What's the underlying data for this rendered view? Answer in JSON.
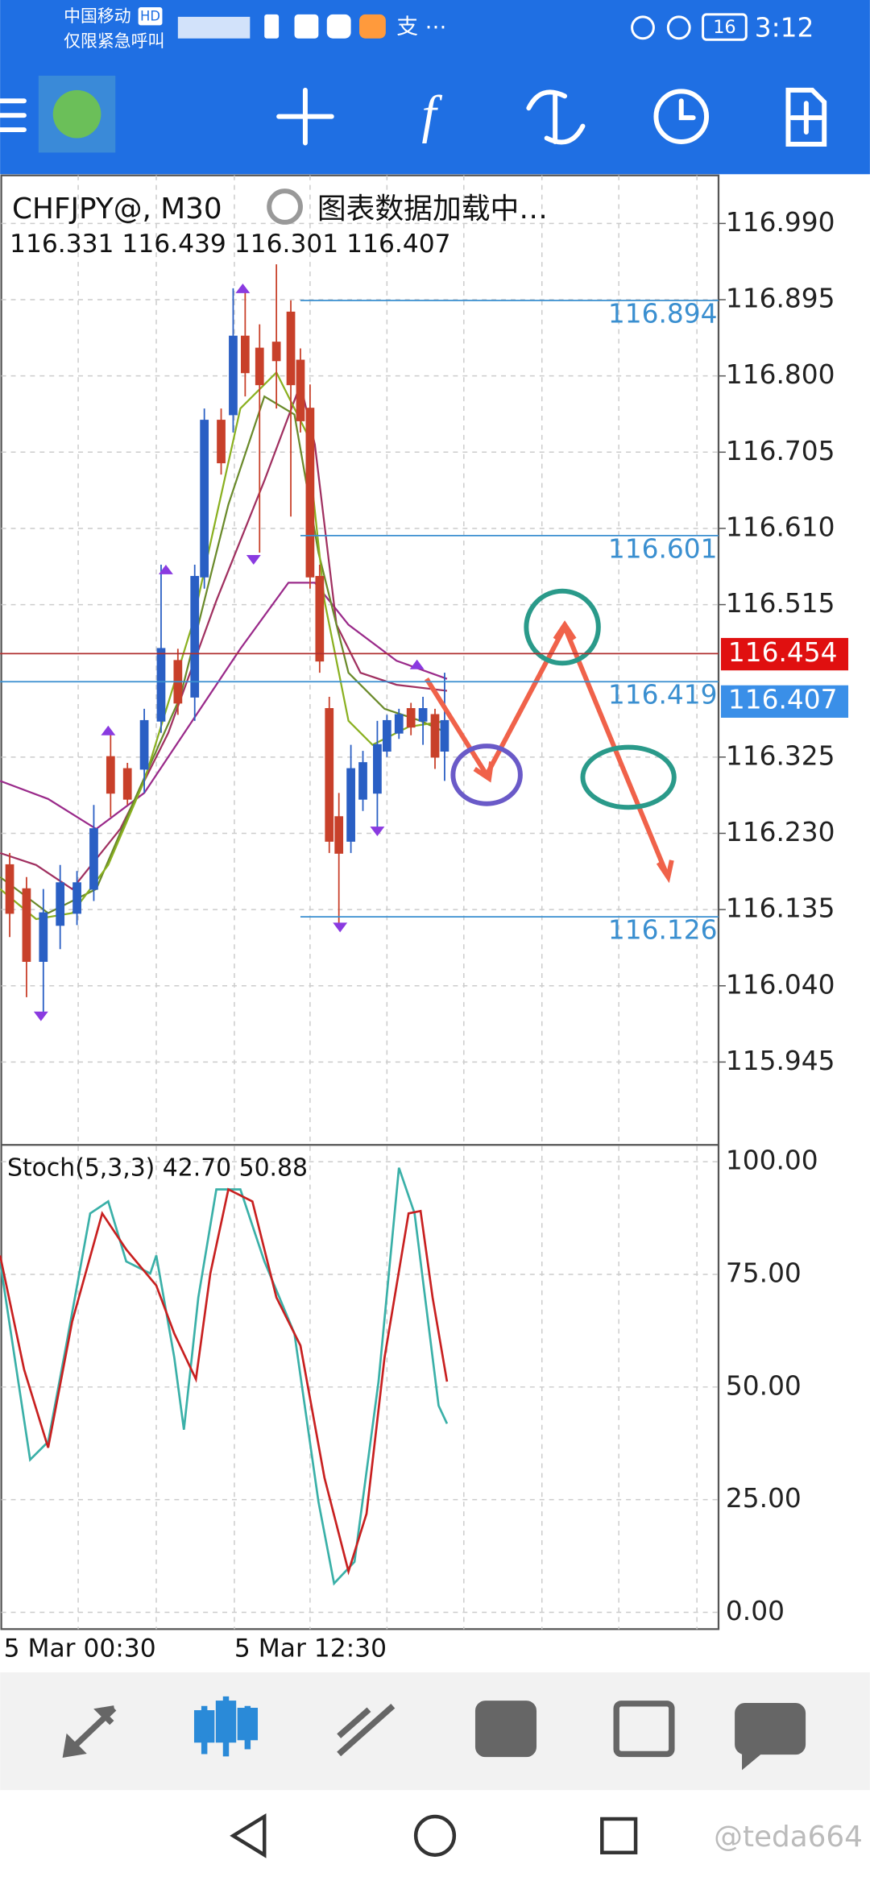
{
  "status_bar": {
    "carrier": "中国移动",
    "carrier_badge": "HD",
    "network": "仅限紧急呼叫",
    "battery": "16",
    "time": "3:12"
  },
  "chart_data": {
    "type": "candlestick",
    "symbol": "CHFJPY@, M30",
    "loading": "图表数据加载中…",
    "ohlc": "116.331 116.439 116.301 116.407",
    "yticks": [
      {
        "value": 116.99,
        "label": "116.990"
      },
      116.895,
      {
        "value": 116.8,
        "label": "116.800"
      },
      116.705,
      {
        "value": 116.61,
        "label": "116.610"
      },
      116.515,
      116.325,
      {
        "value": 116.23,
        "label": "116.230"
      },
      116.135,
      {
        "value": 116.04,
        "label": "116.040"
      },
      115.945
    ],
    "levels": [
      116.894,
      116.601,
      116.419,
      116.126
    ],
    "bid": 116.454,
    "last": 116.407,
    "indicator": {
      "label": "Stoch(5,3,3) 42.70 50.88",
      "yticks": [
        {
          "value": 100,
          "label": "100.00"
        },
        {
          "value": 75,
          "label": "75.00"
        },
        {
          "value": 50,
          "label": "50.00"
        },
        {
          "value": 25,
          "label": "25.00"
        },
        {
          "value": 0,
          "label": "0.00"
        }
      ]
    },
    "x_labels": [
      "5 Mar 00:30",
      "5 Mar 12:30"
    ]
  },
  "watermark": "@teda664"
}
